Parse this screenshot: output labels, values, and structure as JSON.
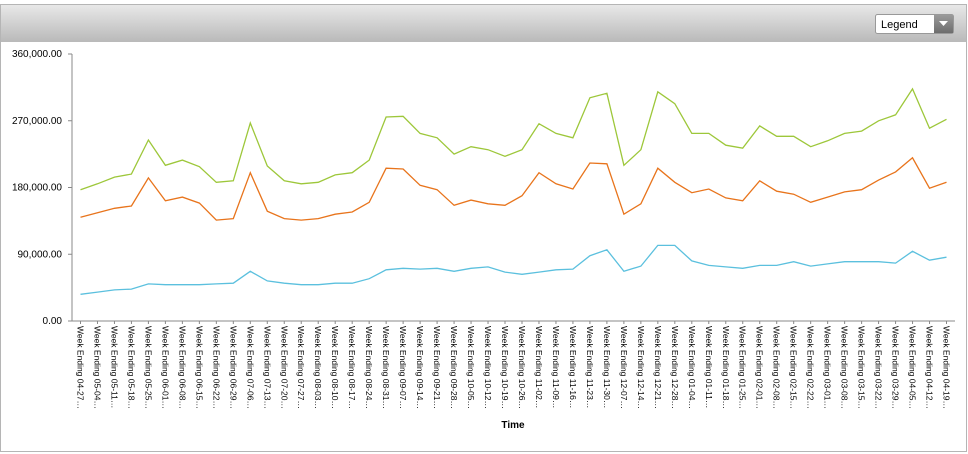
{
  "chart_data": {
    "type": "line",
    "legend_button": "Legend",
    "x_label": "Time",
    "categories": [
      "Week Ending 04-27…",
      "Week Ending 05-04…",
      "Week Ending 05-11…",
      "Week Ending 05-18…",
      "Week Ending 05-25…",
      "Week Ending 06-01…",
      "Week Ending 06-08…",
      "Week Ending 06-15…",
      "Week Ending 06-22…",
      "Week Ending 06-29…",
      "Week Ending 07-06…",
      "Week Ending 07-13…",
      "Week Ending 07-20…",
      "Week Ending 07-27…",
      "Week Ending 08-03…",
      "Week Ending 08-10…",
      "Week Ending 08-17…",
      "Week Ending 08-24…",
      "Week Ending 08-31…",
      "Week Ending 09-07…",
      "Week Ending 09-14…",
      "Week Ending 09-21…",
      "Week Ending 09-28…",
      "Week Ending 10-05…",
      "Week Ending 10-12…",
      "Week Ending 10-19…",
      "Week Ending 10-26…",
      "Week Ending 11-02…",
      "Week Ending 11-09…",
      "Week Ending 11-16…",
      "Week Ending 11-23…",
      "Week Ending 11-30…",
      "Week Ending 12-07…",
      "Week Ending 12-14…",
      "Week Ending 12-21…",
      "Week Ending 12-28…",
      "Week Ending 01-04…",
      "Week Ending 01-11…",
      "Week Ending 01-18…",
      "Week Ending 01-25…",
      "Week Ending 02-01…",
      "Week Ending 02-08…",
      "Week Ending 02-15…",
      "Week Ending 02-22…",
      "Week Ending 03-01…",
      "Week Ending 03-08…",
      "Week Ending 03-15…",
      "Week Ending 03-22…",
      "Week Ending 03-29…",
      "Week Ending 04-05…",
      "Week Ending 04-12…",
      "Week Ending 04-19…"
    ],
    "series": [
      {
        "color": "#9dc73a",
        "values": [
          177000,
          185000,
          194000,
          198000,
          244000,
          210000,
          217000,
          208000,
          187000,
          189000,
          267000,
          209000,
          189000,
          185000,
          187000,
          197000,
          200000,
          217000,
          275000,
          276000,
          253000,
          247000,
          225000,
          235000,
          231000,
          222000,
          231000,
          266000,
          253000,
          247000,
          301000,
          307000,
          210000,
          231000,
          309000,
          293000,
          253000,
          253000,
          237000,
          233000,
          263000,
          249000,
          249000,
          235000,
          243000,
          253000,
          256000,
          270000,
          278000,
          313000,
          260000,
          272000
        ]
      },
      {
        "color": "#e8741c",
        "values": [
          140000,
          146000,
          152000,
          155000,
          193000,
          162000,
          167000,
          159000,
          136000,
          138000,
          200000,
          148000,
          138000,
          136000,
          138000,
          144000,
          147000,
          160000,
          206000,
          205000,
          183000,
          177000,
          156000,
          163000,
          158000,
          156000,
          169000,
          200000,
          185000,
          178000,
          213000,
          212000,
          144000,
          158000,
          206000,
          187000,
          173000,
          178000,
          166000,
          162000,
          189000,
          175000,
          171000,
          160000,
          167000,
          174000,
          177000,
          190000,
          201000,
          220000,
          179000,
          187000
        ]
      },
      {
        "color": "#5bc0de",
        "values": [
          36000,
          39000,
          42000,
          43000,
          50000,
          49000,
          49000,
          49000,
          50000,
          51000,
          67000,
          54000,
          51000,
          49000,
          49000,
          51000,
          51000,
          57000,
          69000,
          71000,
          70000,
          71000,
          67000,
          71000,
          73000,
          66000,
          63000,
          66000,
          69000,
          70000,
          88000,
          96000,
          67000,
          74000,
          102000,
          102000,
          81000,
          75000,
          73000,
          71000,
          75000,
          75000,
          80000,
          74000,
          77000,
          80000,
          80000,
          80000,
          78000,
          94000,
          82000,
          86000
        ]
      }
    ],
    "ylim": [
      0,
      360000
    ],
    "yticks": [
      {
        "value": 0,
        "label": "0.00"
      },
      {
        "value": 90000,
        "label": "90,000.00"
      },
      {
        "value": 180000,
        "label": "180,000.00"
      },
      {
        "value": 270000,
        "label": "270,000.00"
      },
      {
        "value": 360000,
        "label": "360,000.00"
      }
    ]
  }
}
